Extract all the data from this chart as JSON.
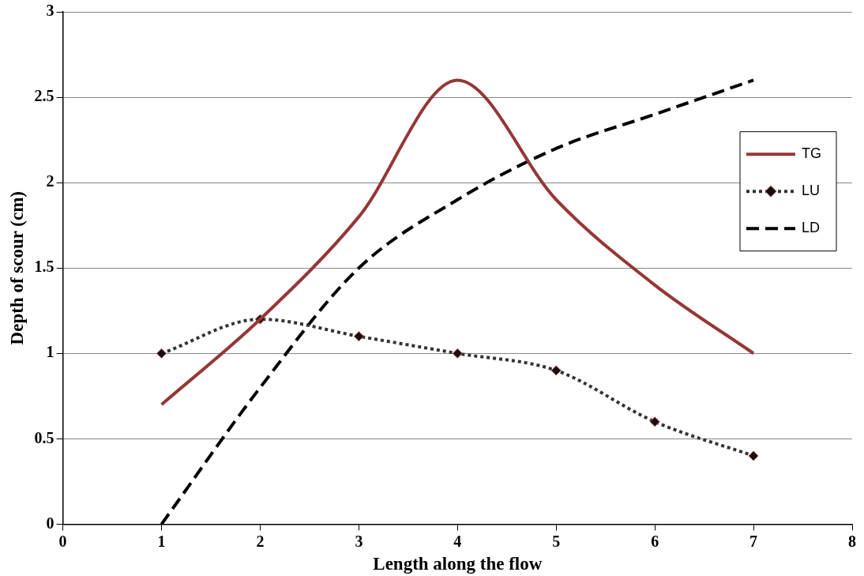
{
  "chart_data": {
    "type": "line",
    "xlabel": "Length along the flow",
    "ylabel": "Depth of scour (cm)",
    "x": [
      1,
      2,
      3,
      4,
      5,
      6,
      7
    ],
    "xlim": [
      0,
      8
    ],
    "xticks": [
      0,
      1,
      2,
      3,
      4,
      5,
      6,
      7,
      8
    ],
    "ylim": [
      0,
      3
    ],
    "yticks": [
      0,
      0.5,
      1,
      1.5,
      2,
      2.5,
      3
    ],
    "grid": "y",
    "legend": "right",
    "series": [
      {
        "name": "TG",
        "color": "#953735",
        "values": [
          0.7,
          1.2,
          1.8,
          2.6,
          1.9,
          1.4,
          1.0
        ],
        "line_style": "solid",
        "marker": "none"
      },
      {
        "name": "LU",
        "color": "#333333",
        "values": [
          1,
          1.2,
          1.1,
          1,
          0.9,
          0.6,
          0.4
        ],
        "line_style": "dotted",
        "marker": "diamond"
      },
      {
        "name": "LD",
        "color": "#000000",
        "values": [
          0,
          0.8,
          1.5,
          1.9,
          2.2,
          2.4,
          2.6
        ],
        "line_style": "dashed",
        "marker": "none"
      }
    ]
  }
}
